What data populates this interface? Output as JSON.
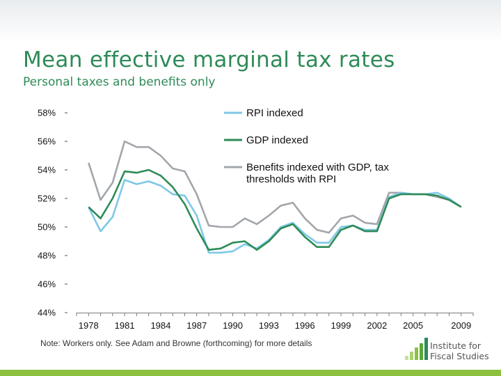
{
  "slide": {
    "title": "Mean effective marginal tax rates",
    "subtitle": "Personal taxes and benefits only",
    "note": "Note: Workers only.  See Adam and Browne (forthcoming) for more details",
    "logo_line1": "Institute for",
    "logo_line2": "Fiscal Studies",
    "colors": {
      "title": "#2e8b57",
      "accent_bar": "#8cc13f",
      "logo_bars": [
        "#c5e09a",
        "#a8d170",
        "#8cc13f",
        "#5aa83a",
        "#2e8b57"
      ]
    }
  },
  "chart_data": {
    "type": "line",
    "title": "",
    "xlabel": "",
    "ylabel": "",
    "xlim": [
      1977,
      2010
    ],
    "ylim": [
      44,
      58
    ],
    "xticks": [
      "1978",
      "1981",
      "1984",
      "1987",
      "1990",
      "1993",
      "1996",
      "1999",
      "2002",
      "2005",
      "2009"
    ],
    "xtick_values": [
      1978,
      1981,
      1984,
      1987,
      1990,
      1993,
      1996,
      1999,
      2002,
      2005,
      2009
    ],
    "yticks": [
      "44%",
      "46%",
      "48%",
      "50%",
      "52%",
      "54%",
      "56%",
      "58%"
    ],
    "ytick_values": [
      44,
      46,
      48,
      50,
      52,
      54,
      56,
      58
    ],
    "grid": false,
    "legend_position": "top-right",
    "series": [
      {
        "name": "RPI indexed",
        "color": "#7fc8e6",
        "x": [
          1978,
          1979,
          1980,
          1981,
          1982,
          1983,
          1984,
          1985,
          1986,
          1987,
          1988,
          1989,
          1990,
          1991,
          1992,
          1993,
          1994,
          1995,
          1996,
          1997,
          1998,
          1999,
          2000,
          2001,
          2002,
          2003,
          2004,
          2005,
          2006,
          2007,
          2008,
          2009
        ],
        "values": [
          51.4,
          49.7,
          50.7,
          53.3,
          53.0,
          53.2,
          52.9,
          52.3,
          52.2,
          50.8,
          48.2,
          48.2,
          48.3,
          48.8,
          48.5,
          49.1,
          50.0,
          50.3,
          49.5,
          48.9,
          48.9,
          50.0,
          50.1,
          49.8,
          49.8,
          52.1,
          52.4,
          52.3,
          52.3,
          52.4,
          52.0,
          51.4
        ]
      },
      {
        "name": "GDP indexed",
        "color": "#2e8b57",
        "x": [
          1978,
          1979,
          1980,
          1981,
          1982,
          1983,
          1984,
          1985,
          1986,
          1987,
          1988,
          1989,
          1990,
          1991,
          1992,
          1993,
          1994,
          1995,
          1996,
          1997,
          1998,
          1999,
          2000,
          2001,
          2002,
          2003,
          2004,
          2005,
          2006,
          2007,
          2008,
          2009
        ],
        "values": [
          51.4,
          50.6,
          52.0,
          53.9,
          53.8,
          54.0,
          53.6,
          52.8,
          51.6,
          49.9,
          48.4,
          48.5,
          48.9,
          49.0,
          48.4,
          49.0,
          49.9,
          50.2,
          49.3,
          48.6,
          48.6,
          49.8,
          50.1,
          49.7,
          49.7,
          52.0,
          52.3,
          52.3,
          52.3,
          52.2,
          51.9,
          51.4
        ]
      },
      {
        "name": "Benefits indexed with GDP, tax thresholds with RPI",
        "color": "#a2a6ab",
        "x": [
          1978,
          1979,
          1980,
          1981,
          1982,
          1983,
          1984,
          1985,
          1986,
          1987,
          1988,
          1989,
          1990,
          1991,
          1992,
          1993,
          1994,
          1995,
          1996,
          1997,
          1998,
          1999,
          2000,
          2001,
          2002,
          2003,
          2004,
          2005,
          2006,
          2007,
          2008,
          2009
        ],
        "values": [
          54.5,
          51.9,
          53.1,
          56.0,
          55.6,
          55.6,
          55.0,
          54.1,
          53.9,
          52.3,
          50.1,
          50.0,
          50.0,
          50.6,
          50.2,
          50.8,
          51.5,
          51.7,
          50.6,
          49.8,
          49.6,
          50.6,
          50.8,
          50.3,
          50.2,
          52.4,
          52.4,
          52.3,
          52.3,
          52.1,
          51.9,
          51.4
        ]
      }
    ]
  }
}
